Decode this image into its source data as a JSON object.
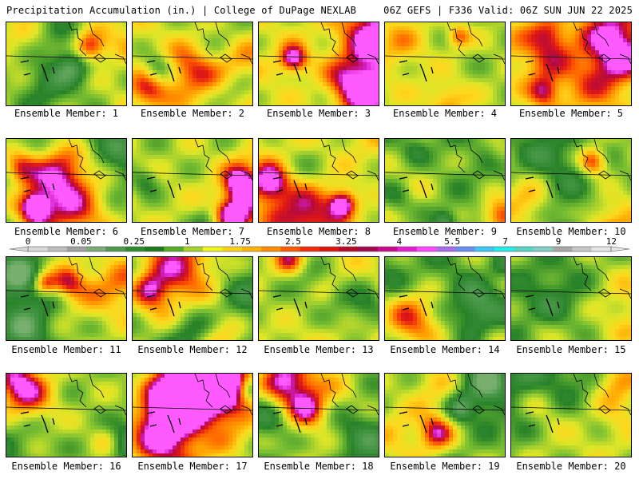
{
  "header": {
    "left_title": "Precipitation Accumulation (in.) | College of DuPage NEXLAB",
    "right_title": "06Z GEFS | F336 Valid: 06Z SUN JUN 22 2025"
  },
  "colorbar": {
    "ticks": [
      "0",
      "0.05",
      "0.25",
      "1",
      "1.75",
      "2.5",
      "3.25",
      "4",
      "5.5",
      "7",
      "9",
      "12"
    ],
    "colors": [
      "#d9d9d9",
      "#bdbdbd",
      "#a0a0a0",
      "#7aa97a",
      "#4f9a4f",
      "#2e8b2e",
      "#1f7a1f",
      "#5aaa28",
      "#a4d22a",
      "#f1f51f",
      "#ffd21a",
      "#ffb400",
      "#ff8c00",
      "#ff5a00",
      "#f42b0f",
      "#dc1414",
      "#b40a28",
      "#a00a50",
      "#c80a8c",
      "#e61ed2",
      "#ff46ff",
      "#a96ce8",
      "#6b8cf0",
      "#3cc8f0",
      "#28ebe6",
      "#55d4c4",
      "#82cfc6",
      "#a8a8a8",
      "#c8c8c8",
      "#e6e6e6"
    ]
  },
  "members": [
    {
      "label": "Ensemble Member: 1"
    },
    {
      "label": "Ensemble Member: 2"
    },
    {
      "label": "Ensemble Member: 3"
    },
    {
      "label": "Ensemble Member: 4"
    },
    {
      "label": "Ensemble Member: 5"
    },
    {
      "label": "Ensemble Member: 6"
    },
    {
      "label": "Ensemble Member: 7"
    },
    {
      "label": "Ensemble Member: 8"
    },
    {
      "label": "Ensemble Member: 9"
    },
    {
      "label": "Ensemble Member: 10"
    },
    {
      "label": "Ensemble Member: 11"
    },
    {
      "label": "Ensemble Member: 12"
    },
    {
      "label": "Ensemble Member: 13"
    },
    {
      "label": "Ensemble Member: 14"
    },
    {
      "label": "Ensemble Member: 15"
    },
    {
      "label": "Ensemble Member: 16"
    },
    {
      "label": "Ensemble Member: 17"
    },
    {
      "label": "Ensemble Member: 18"
    },
    {
      "label": "Ensemble Member: 19"
    },
    {
      "label": "Ensemble Member: 20"
    }
  ]
}
